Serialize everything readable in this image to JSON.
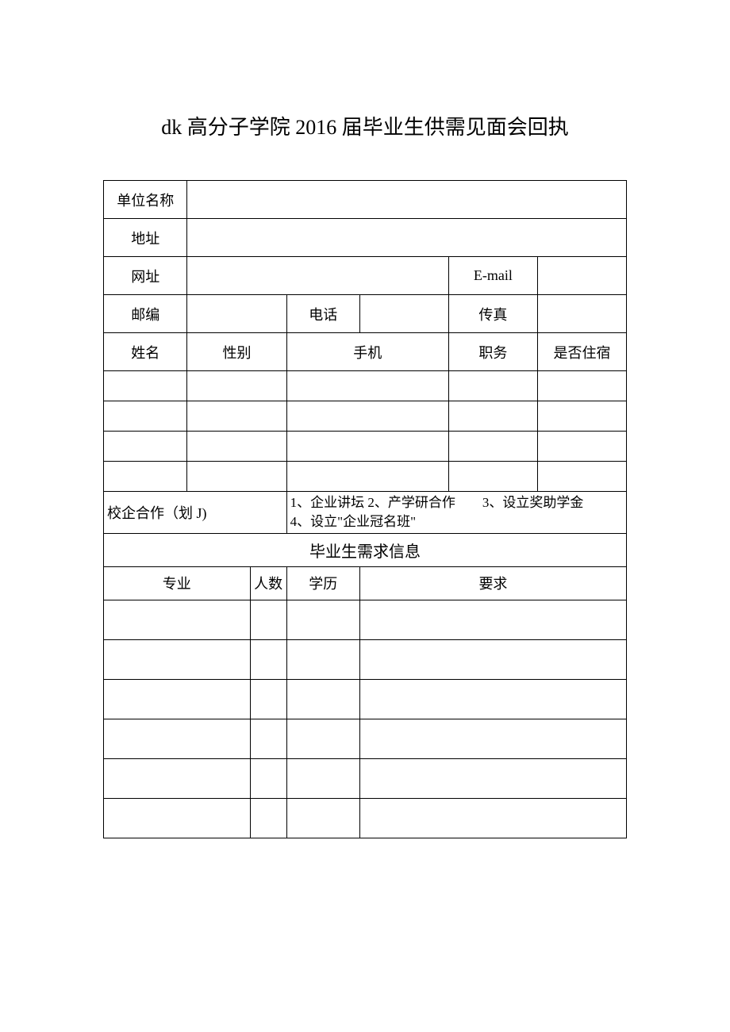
{
  "title": "dk 高分子学院 2016 届毕业生供需见面会回执",
  "labels": {
    "company_name": "单位名称",
    "address": "地址",
    "website": "网址",
    "email": "E-mail",
    "postcode": "邮编",
    "phone": "电话",
    "fax": "传真",
    "name": "姓名",
    "gender": "性别",
    "mobile": "手机",
    "position": "职务",
    "accommodation": "是否住宿",
    "cooperation": "校企合作（划 J)",
    "cooperation_options": "1、企业讲坛 2、产学研合作　　3、设立奖助学金\n4、设立\"企业冠名班\"",
    "demand_section": "毕业生需求信息",
    "major": "专业",
    "count": "人数",
    "education": "学历",
    "requirements": "要求"
  },
  "style": {
    "background_color": "#ffffff",
    "border_color": "#000000",
    "text_color": "#000000",
    "title_fontsize": 26,
    "cell_fontsize": 18,
    "font_family": "SimSun"
  }
}
